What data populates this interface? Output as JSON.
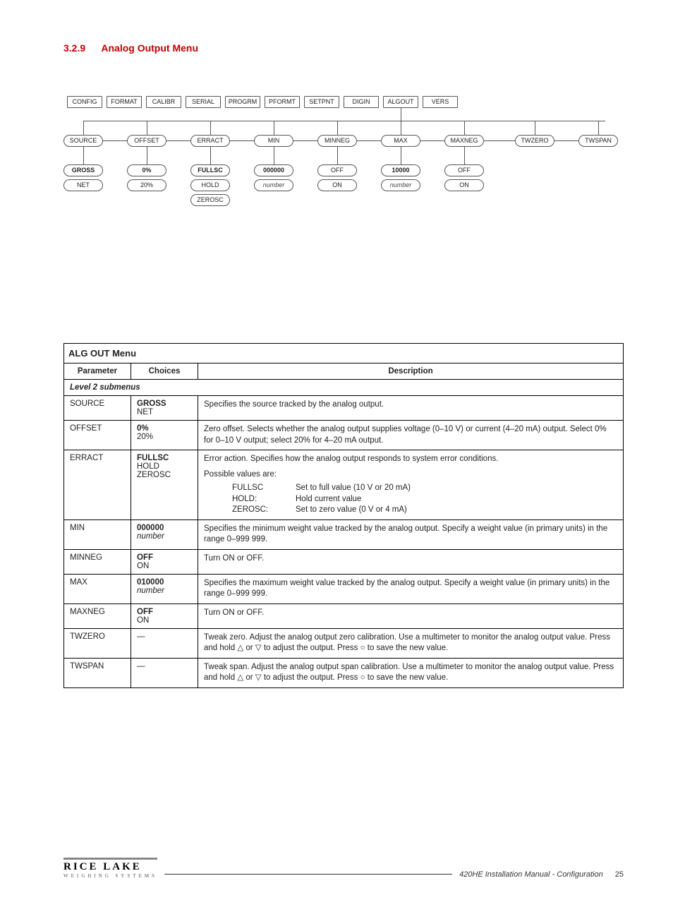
{
  "heading": {
    "num": "3.2.9",
    "title": "Analog Output Menu"
  },
  "diagram": {
    "top_row": [
      "CONFIG",
      "FORMAT",
      "CALIBR",
      "SERIAL",
      "PROGRM",
      "PFORMT",
      "SETPNT",
      "DIGIN",
      "ALGOUT",
      "VERS"
    ],
    "sub_row": [
      "SOURCE",
      "OFFSET",
      "ERRACT",
      "MIN",
      "MINNEG",
      "MAX",
      "MAXNEG",
      "TWZERO",
      "TWSPAN"
    ],
    "vals_a": [
      "GROSS",
      "0%",
      "FULLSC",
      "000000",
      "OFF",
      "10000",
      "OFF"
    ],
    "vals_b": [
      "NET",
      "20%",
      "HOLD",
      "number",
      "ON",
      "number",
      "ON"
    ],
    "vals_c": {
      "2": "ZEROSC"
    },
    "bold_idx_a": [
      0,
      1,
      2,
      3,
      5
    ],
    "ital_idx_b": [
      3,
      5
    ]
  },
  "table": {
    "caption": "ALG OUT Menu",
    "headers": [
      "Parameter",
      "Choices",
      "Description"
    ],
    "subheader": "Level 2 submenus",
    "rows": [
      {
        "param": "SOURCE",
        "choices": [
          {
            "text": "GROSS",
            "bold": true
          },
          {
            "text": "NET"
          }
        ],
        "desc": "Specifies the source tracked by the analog output."
      },
      {
        "param": "OFFSET",
        "choices": [
          {
            "text": "0%",
            "bold": true
          },
          {
            "text": "20%"
          }
        ],
        "desc": "Zero offset. Selects whether the analog output supplies voltage (0–10 V) or current (4–20 mA) output. Select 0% for 0–10 V output; select 20% for 4–20 mA output."
      },
      {
        "param": "ERRACT",
        "choices": [
          {
            "text": "FULLSC",
            "bold": true
          },
          {
            "text": "HOLD"
          },
          {
            "text": "ZEROSC"
          }
        ],
        "desc": "Error action. Specifies how the analog output responds to system error conditions.",
        "extra_line": "Possible values are:",
        "value_defs": [
          {
            "k": "FULLSC",
            "v": "Set to full value (10 V or 20 mA)"
          },
          {
            "k": "HOLD:",
            "v": "Hold current value"
          },
          {
            "k": "ZEROSC:",
            "v": "Set to zero value (0 V or 4 mA)"
          }
        ]
      },
      {
        "param": "MIN",
        "choices": [
          {
            "text": "000000",
            "bold": true
          },
          {
            "text": "number",
            "italic": true
          }
        ],
        "desc": "Specifies the minimum weight value tracked by the analog output. Specify a weight value (in primary units) in the range 0–999 999."
      },
      {
        "param": "MINNEG",
        "choices": [
          {
            "text": "OFF",
            "bold": true
          },
          {
            "text": "ON"
          }
        ],
        "desc": "Turn ON or OFF."
      },
      {
        "param": "MAX",
        "choices": [
          {
            "text": "010000",
            "bold": true
          },
          {
            "text": "number",
            "italic": true
          }
        ],
        "desc": "Specifies the maximum weight value tracked by the analog output. Specify a weight value (in primary units) in the range 0–999 999."
      },
      {
        "param": "MAXNEG",
        "choices": [
          {
            "text": "OFF",
            "bold": true
          },
          {
            "text": "ON"
          }
        ],
        "desc": "Turn ON or OFF."
      },
      {
        "param": "TWZERO",
        "choices": [
          {
            "text": "—"
          }
        ],
        "desc_html": "Tweak zero. Adjust the analog output zero calibration. Use a multimeter to monitor the analog output value. Press and hold △ or ▽ to adjust the output. Press ○ to save the new value."
      },
      {
        "param": "TWSPAN",
        "choices": [
          {
            "text": "—"
          }
        ],
        "desc_html": "Tweak span. Adjust the analog output span calibration. Use a multimeter to monitor the analog output value. Press and hold △ or ▽ to adjust the output. Press ○ to save the new value."
      }
    ]
  },
  "footer": {
    "logo_top": "RICE LAKE",
    "logo_bot": "WEIGHING SYSTEMS",
    "text": "420HE Installation Manual - Configuration",
    "page": "25"
  }
}
